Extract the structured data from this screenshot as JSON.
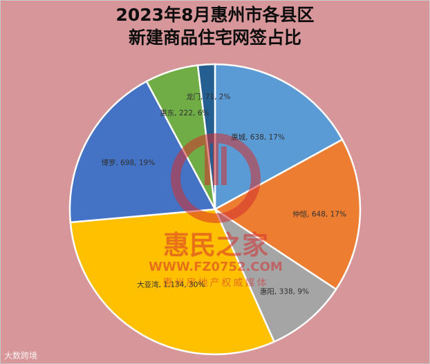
{
  "chart_data": {
    "type": "pie",
    "title_line1": "2023年8月惠州市各县区",
    "title_line2": "新建商品住宅网签占比",
    "slices": [
      {
        "name": "惠城",
        "value": 638,
        "percent": "17%",
        "color": "#5b9bd5"
      },
      {
        "name": "仲恺",
        "value": 648,
        "percent": "17%",
        "color": "#ed7d31"
      },
      {
        "name": "惠阳",
        "value": 338,
        "percent": "9%",
        "color": "#a5a5a5"
      },
      {
        "name": "大亚湾",
        "value": 1134,
        "percent": "30%",
        "color": "#ffc000"
      },
      {
        "name": "博罗",
        "value": 698,
        "percent": "19%",
        "color": "#4472c4"
      },
      {
        "name": "惠东",
        "value": 222,
        "percent": "6%",
        "color": "#70ad47"
      },
      {
        "name": "龙门",
        "value": 71,
        "percent": "2%",
        "color": "#255e91"
      }
    ],
    "labels": [
      "惠城, 638, 17%",
      "仲恺, 648, 17%",
      "惠阳, 338, 9%",
      "大亚湾, 1,134, 30%",
      "博罗, 698, 19%",
      "惠东, 222, 6%",
      "龙门, 71, 2%"
    ]
  },
  "watermark": {
    "brand": "惠民之家",
    "url": "WWW.FZ0752.COM",
    "tagline": "惠州房地产权威媒体"
  },
  "source": "大数跨境"
}
